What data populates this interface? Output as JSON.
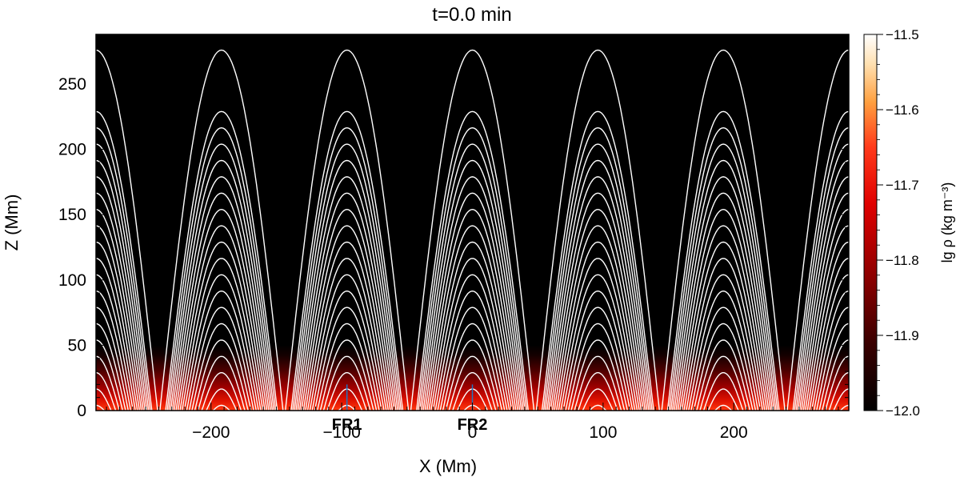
{
  "chart_data": {
    "type": "heatmap",
    "title": "t=0.0 min",
    "xlabel": "X (Mm)",
    "ylabel": "Z (Mm)",
    "xlim": [
      -288,
      288
    ],
    "ylim": [
      0,
      288
    ],
    "x_ticks": [
      -200,
      -100,
      0,
      100,
      200
    ],
    "x_tick_labels": [
      "−200",
      "−100",
      "0",
      "100",
      "200"
    ],
    "y_ticks": [
      0,
      50,
      100,
      150,
      200,
      250
    ],
    "y_tick_labels": [
      "0",
      "50",
      "100",
      "150",
      "200",
      "250"
    ],
    "colorbar": {
      "label": "lg ρ (kg m⁻³)",
      "range": [
        -12.0,
        -11.5
      ],
      "ticks": [
        -12.0,
        -11.9,
        -11.8,
        -11.7,
        -11.6,
        -11.5
      ],
      "tick_labels": [
        "−12.0",
        "−11.9",
        "−11.8",
        "−11.7",
        "−11.6",
        "−11.5"
      ],
      "colormap": [
        "#000000",
        "#3a0000",
        "#8a0000",
        "#d80000",
        "#ff3a1a",
        "#ffa040",
        "#ffe0b0",
        "#ffffff"
      ]
    },
    "density_layer_top": 50,
    "field_line_period": 96,
    "field_line_arch_centers": [
      -192,
      -96,
      0,
      96,
      192
    ],
    "field_line_color": "#ffffff",
    "markers": [
      {
        "label": "FR1",
        "x": -96,
        "z_top": 20,
        "color": "#1f77c0"
      },
      {
        "label": "FR2",
        "x": 0,
        "z_top": 20,
        "color": "#1f77c0"
      }
    ]
  }
}
